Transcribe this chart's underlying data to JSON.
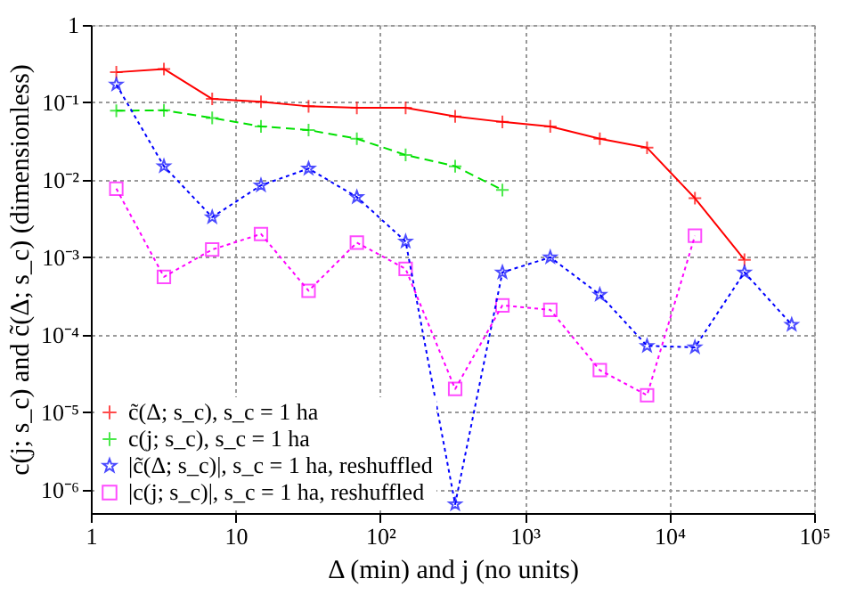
{
  "chart_data": {
    "type": "line",
    "xlabel": "Δ (min) and j (no units)",
    "ylabel": "c(j; s_c) and c̃(Δ; s_c) (dimensionless)",
    "log": "xy",
    "grid": true,
    "legend": "bottom left",
    "xlim": [
      1,
      100000
    ],
    "ylim": [
      5e-07,
      1
    ],
    "xticks": [
      1,
      10,
      {
        "value": 100,
        "label": "10²"
      },
      {
        "value": 1000,
        "label": "10³"
      },
      {
        "value": 10000,
        "label": "10⁴"
      },
      {
        "value": 100000,
        "label": "10⁵"
      }
    ],
    "yticks": [
      1,
      {
        "value": 0.1,
        "label": "10⁻¹"
      },
      {
        "value": 0.01,
        "label": "10⁻²"
      },
      {
        "value": 0.001,
        "label": "10⁻³"
      },
      {
        "value": 0.0001,
        "label": "10⁻⁴"
      },
      {
        "value": 1e-05,
        "label": "10⁻⁵"
      },
      {
        "value": 1e-06,
        "label": "10⁻⁶"
      }
    ],
    "series": [
      {
        "name": "c̃(Δ; s_c), s_c = 1 ha",
        "color": "#ff0000",
        "marker": "cross",
        "line_style": "solid",
        "x": [
          1.5,
          3.2,
          6.9,
          15,
          32,
          69,
          150,
          330,
          700,
          1500,
          3300,
          7000,
          15000,
          33000
        ],
        "values": [
          0.245,
          0.27,
          0.111,
          0.102,
          0.089,
          0.085,
          0.085,
          0.066,
          0.056,
          0.049,
          0.034,
          0.026,
          0.0058,
          0.00093
        ]
      },
      {
        "name": "c(j; s_c), s_c = 1 ha",
        "color": "#00e000",
        "marker": "cross",
        "line_style": "dashed",
        "x": [
          1.5,
          3.2,
          6.9,
          15,
          32,
          69,
          150,
          330,
          700
        ],
        "values": [
          0.078,
          0.079,
          0.063,
          0.049,
          0.044,
          0.034,
          0.021,
          0.015,
          0.0074
        ]
      },
      {
        "name": "|c̃(Δ; s_c)|, s_c = 1 ha, reshuffled",
        "color": "#0000ff",
        "marker": "star",
        "line_style": "dotted",
        "x": [
          1.5,
          3.2,
          6.9,
          15,
          32,
          69,
          150,
          330,
          700,
          1500,
          3300,
          7000,
          15000,
          33000,
          70000
        ],
        "values": [
          0.17,
          0.015,
          0.0033,
          0.0085,
          0.014,
          0.006,
          0.0016,
          6.5e-07,
          0.00064,
          0.001,
          0.00033,
          7.2e-05,
          6.9e-05,
          0.00064,
          0.000135
        ]
      },
      {
        "name": "|c(j; s_c)|, s_c = 1 ha, reshuffled",
        "color": "#ff00ff",
        "marker": "square",
        "line_style": "dotted",
        "x": [
          1.5,
          3.2,
          6.9,
          15,
          32,
          69,
          150,
          330,
          700,
          1500,
          3300,
          7000,
          15000
        ],
        "values": [
          0.0077,
          0.00056,
          0.00126,
          0.002,
          0.00037,
          0.00155,
          0.00071,
          2e-05,
          0.00024,
          0.00021,
          3.5e-05,
          1.66e-05,
          0.0019
        ]
      }
    ]
  }
}
